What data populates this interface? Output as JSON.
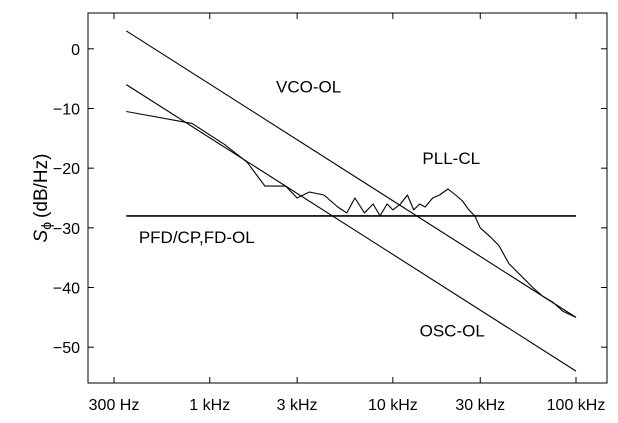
{
  "chart_data": {
    "type": "line",
    "xlabel": "",
    "ylabel": "(dB/Hz)",
    "ylabel_symbol": "S",
    "ylabel_subscript": "ϕ",
    "x_scale": "log",
    "xlim": [
      300,
      100000
    ],
    "ylim": [
      -56,
      6
    ],
    "grid": false,
    "x_ticks": [
      {
        "value": 300,
        "label": "300 Hz"
      },
      {
        "value": 1000,
        "label": "1 kHz"
      },
      {
        "value": 3000,
        "label": "3 kHz"
      },
      {
        "value": 10000,
        "label": "10 kHz"
      },
      {
        "value": 30000,
        "label": "30 kHz"
      },
      {
        "value": 100000,
        "label": "100 kHz"
      }
    ],
    "y_ticks": [
      {
        "value": 0,
        "label": "0"
      },
      {
        "value": -10,
        "label": "−10"
      },
      {
        "value": -20,
        "label": "−20"
      },
      {
        "value": -30,
        "label": "−30"
      },
      {
        "value": -40,
        "label": "−40"
      },
      {
        "value": -50,
        "label": "−50"
      }
    ],
    "series": [
      {
        "name": "VCO-OL",
        "x": [
          350,
          100000
        ],
        "y": [
          3,
          -45
        ]
      },
      {
        "name": "OSC-OL",
        "x": [
          350,
          100000
        ],
        "y": [
          -6,
          -54
        ]
      },
      {
        "name": "PFD/CP,FD-OL",
        "x": [
          350,
          100000
        ],
        "y": [
          -28,
          -28
        ]
      },
      {
        "name": "PLL-CL",
        "x": [
          350,
          800,
          1200,
          1600,
          2000,
          2600,
          3000,
          3500,
          4200,
          5000,
          5600,
          6200,
          7000,
          7800,
          8500,
          9300,
          10000,
          11000,
          12000,
          13000,
          14000,
          15000,
          16500,
          18000,
          20000,
          22000,
          24000,
          26000,
          28000,
          30000,
          34000,
          38000,
          43000,
          50000,
          58000,
          66000,
          75000,
          85000,
          100000
        ],
        "y": [
          -10.5,
          -12.5,
          -16,
          -19,
          -23,
          -23,
          -25,
          -24,
          -24.5,
          -26.5,
          -27.5,
          -25,
          -27.5,
          -26,
          -28,
          -26,
          -27,
          -26,
          -24.5,
          -27,
          -26,
          -26.5,
          -25,
          -24.5,
          -23.5,
          -24.5,
          -25.5,
          -27,
          -28,
          -30,
          -31.5,
          -33,
          -36,
          -38,
          -40,
          -41.5,
          -42.5,
          -44,
          -45
        ]
      }
    ],
    "annotations": [
      {
        "text": "VCO-OL",
        "x": 2300,
        "y": -7.3
      },
      {
        "text": "PLL-CL",
        "x": 14500,
        "y": -19.3
      },
      {
        "text": "PFD/CP,FD-OL",
        "x": 410,
        "y": -32.5
      },
      {
        "text": "OSC-OL",
        "x": 14000,
        "y": -48.2
      }
    ]
  }
}
